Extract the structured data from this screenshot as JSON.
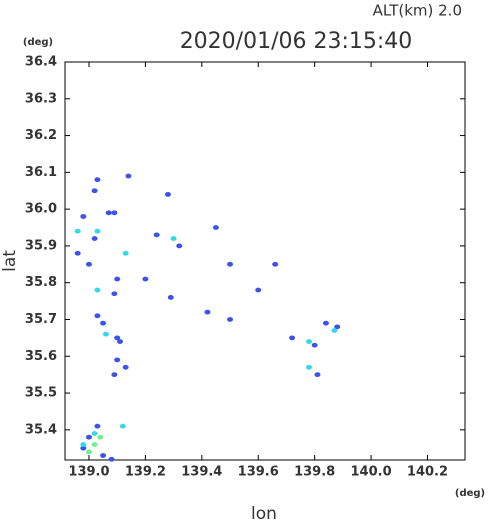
{
  "chart_data": {
    "type": "scatter",
    "title": "2020/01/06 23:15:40",
    "subtitle": "ALT(km) 2.0",
    "x_label": "lon",
    "y_label": "lat",
    "x_unit": "(deg)",
    "y_unit": "(deg)",
    "xlim": [
      138.915,
      140.333
    ],
    "ylim": [
      35.318,
      36.4
    ],
    "xticks": [
      {
        "value": 139,
        "label": "139.0"
      },
      139.2,
      139.4,
      139.6,
      139.8,
      {
        "value": 140,
        "label": "140.0"
      },
      140.2
    ],
    "yticks": [
      35.4,
      35.5,
      35.6,
      35.7,
      35.8,
      35.9,
      {
        "value": 36,
        "label": "36.0"
      },
      36.1,
      36.2,
      36.3,
      36.4
    ],
    "series": [
      {
        "color": "#3d52e8",
        "x": [
          139.03,
          139.02,
          138.98,
          139.07,
          139.09,
          139.02,
          138.96,
          139.0,
          139.1,
          139.09,
          139.03,
          139.05,
          139.1,
          139.11,
          139.1,
          139.13,
          139.09,
          139.2,
          139.29,
          139.42,
          139.5,
          139.5,
          139.32,
          139.28,
          139.45,
          139.6,
          139.66,
          139.72,
          139.8,
          139.84,
          139.81,
          139.88,
          139.03,
          139.0,
          138.98,
          139.05,
          139.08,
          139.14,
          139.24
        ],
        "y": [
          36.08,
          36.05,
          35.98,
          35.99,
          35.99,
          35.92,
          35.88,
          35.85,
          35.81,
          35.77,
          35.71,
          35.69,
          35.65,
          35.64,
          35.59,
          35.57,
          35.55,
          35.81,
          35.76,
          35.72,
          35.7,
          35.85,
          35.9,
          36.04,
          35.95,
          35.78,
          35.85,
          35.65,
          35.63,
          35.69,
          35.55,
          35.68,
          35.41,
          35.38,
          35.35,
          35.33,
          35.32,
          36.09,
          35.93
        ]
      },
      {
        "color": "#36d8e8",
        "x": [
          139.03,
          138.96,
          139.03,
          139.06,
          139.13,
          139.3,
          139.87,
          139.78,
          139.78,
          139.12,
          139.02,
          138.98
        ],
        "y": [
          35.94,
          35.94,
          35.78,
          35.66,
          35.88,
          35.92,
          35.67,
          35.64,
          35.57,
          35.41,
          35.39,
          35.36
        ]
      },
      {
        "color": "#6ef08c",
        "x": [
          139.04,
          139.0,
          139.02
        ],
        "y": [
          35.38,
          35.34,
          35.36
        ]
      }
    ]
  }
}
